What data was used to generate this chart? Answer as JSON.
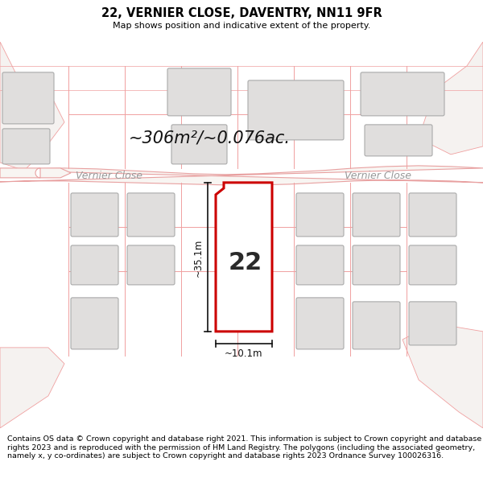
{
  "title": "22, VERNIER CLOSE, DAVENTRY, NN11 9FR",
  "subtitle": "Map shows position and indicative extent of the property.",
  "footer": "Contains OS data © Crown copyright and database right 2021. This information is subject to Crown copyright and database rights 2023 and is reproduced with the permission of HM Land Registry. The polygons (including the associated geometry, namely x, y co-ordinates) are subject to Crown copyright and database rights 2023 Ordnance Survey 100026316.",
  "area_label": "~306m²/~0.076ac.",
  "number_label": "22",
  "width_label": "~10.1m",
  "height_label": "~35.1m",
  "map_bg": "#ffffff",
  "parcel_bg": "#f0eeec",
  "plot_fill": "#ffffff",
  "plot_outline": "#cc0000",
  "road_fill": "#ffffff",
  "road_edge": "#e8a0a0",
  "building_fill": "#e0dedd",
  "building_outline": "#aaaaaa",
  "parcel_line": "#f0a0a0",
  "dim_color": "#111111",
  "area_fontsize": 15,
  "road_label_color": "#999999",
  "road_label_size": 9
}
